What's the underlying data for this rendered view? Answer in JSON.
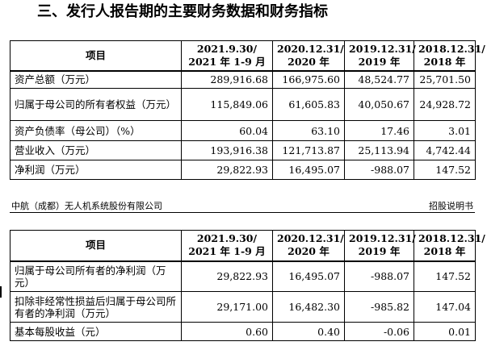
{
  "section_title": "三、发行人报告期的主要财务数据和财务指标",
  "header": {
    "item": "项目",
    "periods": [
      {
        "line1": "2021.9.30/",
        "line2": "2021 年 1-9 月"
      },
      {
        "line1": "2020.12.31/",
        "line2": "2020 年"
      },
      {
        "line1": "2019.12.31/",
        "line2": "2019 年"
      },
      {
        "line1": "2018.12.31/",
        "line2": "2018 年"
      }
    ]
  },
  "table1": {
    "rows": [
      {
        "label": "资产总额（万元）",
        "values": [
          "289,916.68",
          "166,975.60",
          "48,524.77",
          "25,701.50"
        ]
      },
      {
        "label": "归属于母公司的所有者权益（万元）",
        "values": [
          "115,849.06",
          "61,605.83",
          "40,050.67",
          "24,928.72"
        ]
      },
      {
        "label": "资产负债率（母公司）（%）",
        "values": [
          "60.04",
          "63.10",
          "17.46",
          "3.01"
        ]
      },
      {
        "label": "营业收入（万元）",
        "values": [
          "193,916.38",
          "121,713.87",
          "25,113.94",
          "4,742.44"
        ]
      },
      {
        "label": "净利润（万元）",
        "values": [
          "29,822.93",
          "16,495.07",
          "-988.07",
          "147.52"
        ]
      }
    ]
  },
  "footer": {
    "company": "中航（成都）无人机系统股份有限公司",
    "doc_type": "招股说明书"
  },
  "table2": {
    "rows": [
      {
        "label": "归属于母公司所有者的净利润（万元）",
        "values": [
          "29,822.93",
          "16,495.07",
          "-988.07",
          "147.52"
        ]
      },
      {
        "label": "扣除非经常性损益后归属于母公司所有者的净利润（万元）",
        "values": [
          "29,171.00",
          "16,482.30",
          "-985.82",
          "147.04"
        ]
      },
      {
        "label": "基本每股收益（元）",
        "values": [
          "0.60",
          "0.40",
          "-0.06",
          "0.01"
        ]
      }
    ]
  }
}
